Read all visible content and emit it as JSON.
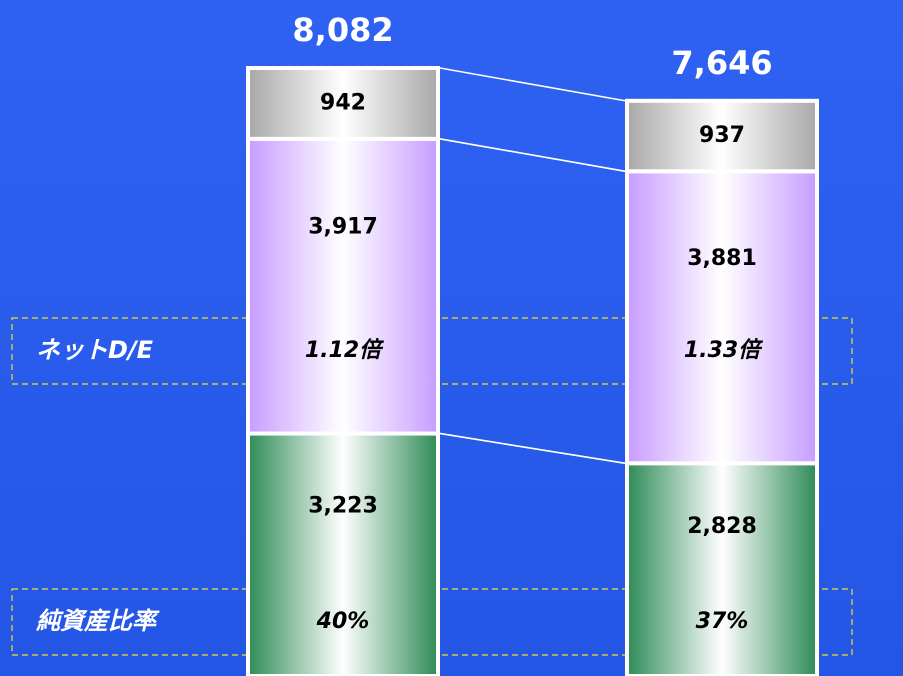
{
  "chart_data": {
    "type": "stacked_bar",
    "categories": [
      null,
      null
    ],
    "series": [
      {
        "color": "#2e8b57",
        "values": [
          3223,
          2828
        ],
        "value_labels": [
          "3,223",
          "2,828"
        ]
      },
      {
        "color": "#c89cff",
        "values": [
          3917,
          3881
        ],
        "value_labels": [
          "3,917",
          "3,881"
        ]
      },
      {
        "color": "#a8a8a8",
        "values": [
          942,
          937
        ],
        "value_labels": [
          "942",
          "937"
        ]
      }
    ],
    "totals": [
      8082,
      7646
    ],
    "total_labels": [
      "8,082",
      "7,646"
    ],
    "ratio_rows": [
      {
        "label": "ネットD/E",
        "values": [
          "1.12倍",
          "1.33倍"
        ]
      },
      {
        "label": "純資産比率",
        "values": [
          "40%",
          "37%"
        ]
      }
    ]
  }
}
